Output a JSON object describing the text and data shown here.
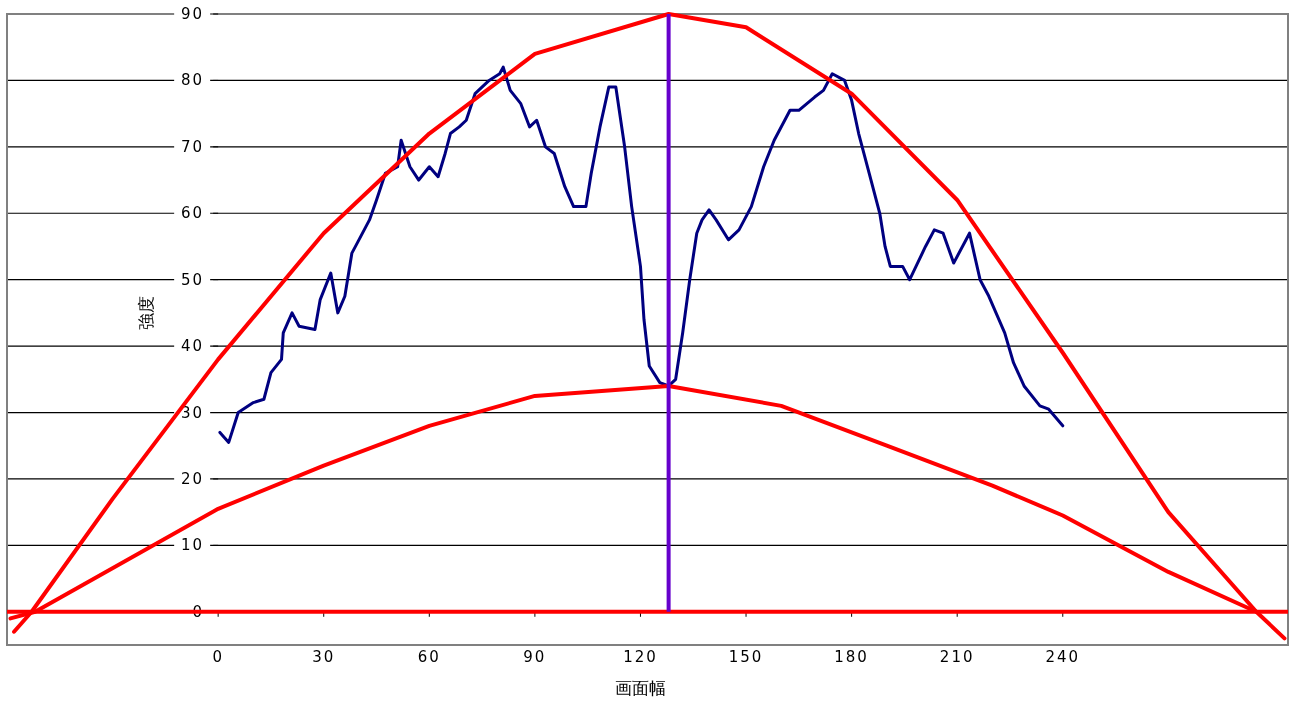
{
  "chart_data": {
    "type": "line",
    "xlabel": "画面幅",
    "ylabel": "強度",
    "xlim": [
      -60,
      304
    ],
    "ylim": [
      -5,
      90
    ],
    "xticks": [
      0,
      30,
      60,
      90,
      120,
      150,
      180,
      210,
      240
    ],
    "yticks": [
      0,
      10,
      20,
      30,
      40,
      50,
      60,
      70,
      80,
      90
    ],
    "grid": "y",
    "marker": "none",
    "line_style": "solid",
    "series": [
      {
        "color": "#000080",
        "x": [
          0.5,
          3,
          5.7,
          10,
          13,
          15,
          18,
          18.5,
          21,
          23,
          27.5,
          29,
          32,
          34,
          36,
          38,
          40,
          43,
          45,
          47.5,
          51,
          52,
          54.5,
          57,
          60,
          62.5,
          64.5,
          66,
          68.5,
          70.5,
          73,
          77,
          80,
          81,
          83,
          86,
          88.5,
          90.5,
          93,
          95.5,
          98.5,
          101,
          104.5,
          106,
          108.5,
          111,
          113,
          115.5,
          117.5,
          120,
          121,
          122.5,
          125.5,
          128,
          130,
          132,
          134,
          136,
          137.5,
          139.5,
          141.5,
          145,
          148,
          151.5,
          155,
          158,
          162.5,
          165,
          169.5,
          172,
          174.5,
          178,
          180,
          182,
          185,
          188,
          189.5,
          191,
          194.5,
          196.5,
          201,
          203.5,
          206,
          209,
          213.5,
          216.5,
          219,
          223.5,
          226,
          229,
          233.5,
          236,
          240
        ],
        "values": [
          27,
          25.5,
          30,
          31.5,
          32,
          36,
          38,
          42,
          45,
          43,
          42.5,
          47,
          51,
          45,
          47.5,
          54,
          56,
          59,
          62,
          66,
          67,
          71,
          67,
          65,
          67,
          65.5,
          69,
          72,
          73,
          74,
          78,
          80,
          81,
          82,
          78.5,
          76.5,
          73,
          74,
          70,
          69,
          64,
          61,
          61,
          66,
          73,
          79,
          79,
          70,
          61,
          52,
          44,
          37,
          34.5,
          34,
          35,
          42,
          50,
          57,
          59,
          60.5,
          59,
          56,
          57.5,
          61,
          67,
          71,
          75.5,
          75.5,
          77.5,
          78.5,
          81,
          80,
          77,
          72,
          66,
          60,
          55,
          52,
          52,
          50,
          55,
          57.5,
          57,
          52.5,
          57,
          50,
          47.5,
          42,
          37.5,
          34,
          31,
          30.5,
          28
        ]
      },
      {
        "color": "#ff0000",
        "x": [
          -58,
          -53,
          -30,
          0,
          30,
          60,
          90,
          128,
          150,
          180,
          210,
          240,
          270,
          295,
          303
        ],
        "values": [
          -3,
          0,
          17,
          38,
          57,
          72,
          84,
          90,
          88,
          78,
          62,
          39,
          15,
          0,
          -4
        ]
      },
      {
        "color": "#ff0000",
        "x": [
          -59,
          -52,
          0,
          30,
          60,
          90,
          128,
          160,
          190,
          220,
          240,
          270,
          295
        ],
        "values": [
          -1,
          0,
          15.5,
          22,
          28,
          32.5,
          34,
          31,
          25,
          19,
          14.5,
          6,
          0
        ]
      }
    ],
    "ref_lines": [
      {
        "axis": "y",
        "value": 0,
        "color": "#ff0000"
      },
      {
        "axis": "x",
        "value": 128,
        "color": "#6600cc"
      }
    ]
  }
}
